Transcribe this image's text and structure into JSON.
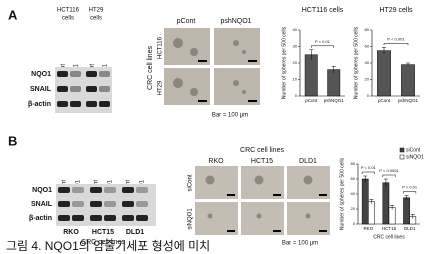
{
  "figure": {
    "panel_a": {
      "label": "A",
      "blot": {
        "groups": [
          [
            "HCT116",
            "cells"
          ],
          [
            "HT29",
            "cells"
          ]
        ],
        "lanes": [
          "pCont",
          "pshNQO1",
          "pCont",
          "pshNQO1"
        ],
        "rows": [
          "NQO1",
          "SNAIL",
          "β-actin"
        ]
      },
      "images": {
        "side_label": "CRC cell lines",
        "columns": [
          "pCont",
          "pshNQO1"
        ],
        "rows": [
          "HCT116",
          "HT29"
        ],
        "scale": "Bar = 100 μm"
      }
    },
    "panel_b": {
      "label": "B",
      "blot": {
        "lanes": [
          "siCont",
          "siNQO1",
          "siCont",
          "siNQO1",
          "siCont",
          "siNQO1"
        ],
        "rows": [
          "NQO1",
          "SNAIL",
          "β-actin"
        ],
        "cell_lines": [
          "RKO",
          "HCT15",
          "DLD1"
        ],
        "footer": "CRC cell lines"
      },
      "images": {
        "title": "CRC cell lines",
        "columns": [
          "RKO",
          "HCT15",
          "DLD1"
        ],
        "rows": [
          "siCont",
          "siNQO1"
        ],
        "scale": "Bar = 100 μm"
      }
    }
  },
  "chart_data": [
    {
      "type": "bar",
      "title": "HCT116 cells",
      "y_label": "Number of spheres per 500 cells",
      "categories": [
        "pCont",
        "pshNQO1"
      ],
      "values": [
        25,
        16
      ],
      "errors": [
        3,
        2
      ],
      "color": "#555555",
      "ylim": [
        0,
        40
      ],
      "yticks": [
        0,
        10,
        20,
        30,
        40
      ],
      "annotations": [
        "P < 0.01"
      ]
    },
    {
      "type": "bar",
      "title": "HT29 cells",
      "y_label": "Number of spheres per 500 cells",
      "categories": [
        "pCont",
        "pshNQO1"
      ],
      "values": [
        55,
        38
      ],
      "errors": [
        4,
        2
      ],
      "color": "#555555",
      "ylim": [
        0,
        80
      ],
      "yticks": [
        0,
        20,
        40,
        60,
        80
      ],
      "annotations": [
        "P < 0.001"
      ]
    },
    {
      "type": "bar",
      "y_label": "Number of spheres per 500 cells",
      "x_label": "CRC cell lines",
      "categories": [
        "RKO",
        "HCT15",
        "DLD1"
      ],
      "series": [
        {
          "name": "siCont",
          "color": "#444444",
          "values": [
            60,
            55,
            35
          ],
          "errors": [
            4,
            5,
            3
          ]
        },
        {
          "name": "siNQO1",
          "color": "#ffffff",
          "values": [
            30,
            22,
            10
          ],
          "errors": [
            3,
            3,
            3
          ]
        }
      ],
      "ylim": [
        0,
        80
      ],
      "yticks": [
        0,
        20,
        40,
        60,
        80
      ],
      "legend": "upper right",
      "annotations": [
        "P < 0.01",
        "P < 0.0001",
        "P < 0.01"
      ]
    }
  ],
  "caption": "그림 4. NQO1의 암줄기세포 형성에 미치"
}
